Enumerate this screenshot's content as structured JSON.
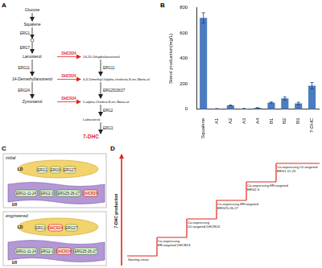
{
  "panel_labels": [
    "A",
    "B",
    "C",
    "D"
  ],
  "pathway": {
    "metabolites": [
      {
        "label": "Glucose"
      },
      {
        "label": "Squalene"
      },
      {
        "label": "Lanosterol"
      },
      {
        "label": "24,25-Dihydrolanosterol"
      },
      {
        "label": "14-Demethyllanosterol"
      },
      {
        "label": "4,4-Dimethyl-5alpha-cholesta-8-en-3beta-ol"
      },
      {
        "label": "Zymosterol"
      },
      {
        "label": "5-alpha-Cholest-8-en-3beta-ol"
      },
      {
        "label": "Lathosterol"
      },
      {
        "label": "7-DHC",
        "color": "#e0261d"
      }
    ],
    "steps": [
      {
        "from": 0,
        "to": 1,
        "enzymes": []
      },
      {
        "from": 1,
        "to": 2,
        "enzymes": [
          "ERG1",
          "ERG7"
        ]
      },
      {
        "from": 2,
        "to": 3,
        "enzymes": [
          "DHCR24"
        ],
        "color": "#e0261d"
      },
      {
        "from": 2,
        "to": 4,
        "enzymes": [
          "ERG11"
        ]
      },
      {
        "from": 3,
        "to": 5,
        "enzymes": [
          "ERG11"
        ]
      },
      {
        "from": 4,
        "to": 5,
        "enzymes": [
          "DHCR24"
        ],
        "color": "#e0261d"
      },
      {
        "from": 4,
        "to": 6,
        "enzymes": [
          "ERG24"
        ]
      },
      {
        "from": 5,
        "to": 7,
        "enzymes": [
          "ERG25/26/27"
        ]
      },
      {
        "from": 6,
        "to": 7,
        "enzymes": [
          "DHCR24"
        ],
        "color": "#e0261d"
      },
      {
        "from": 7,
        "to": 8,
        "enzymes": [
          "ERG2"
        ]
      },
      {
        "from": 8,
        "to": 9,
        "enzymes": [
          "ERG3"
        ]
      }
    ]
  },
  "chart_data": {
    "type": "bar",
    "categories": [
      "Squalene",
      "A1",
      "A2",
      "A3",
      "A4",
      "B1",
      "B2",
      "B3",
      "7-DHC"
    ],
    "values": [
      720,
      3,
      30,
      4,
      10,
      52,
      85,
      45,
      185
    ],
    "errors": [
      40,
      1,
      3,
      1,
      1,
      5,
      12,
      10,
      25
    ],
    "color": "#4a7cc0",
    "ylabel": "Sterol production(mg/L)",
    "ylim": [
      0,
      800
    ],
    "yticks": [
      0,
      200,
      400,
      600,
      800
    ],
    "grid": false
  },
  "compartments": {
    "highlight": {
      "label": "DHCR24",
      "color": "#e0261d"
    },
    "states": [
      {
        "title": "initial",
        "LD": [
          "ERG1",
          "ERG6",
          "ERG27"
        ],
        "ER": [
          "ERG1-11-24",
          "ERG2-3",
          "ERG25-26-27",
          "DHCR24"
        ]
      },
      {
        "title": "engineered",
        "LD": [
          "ERG1",
          "DHCR24",
          "ERG27"
        ],
        "ER": [
          "ERG1-11-24",
          "ERG2-3",
          "DHCR24",
          "ERG25-26-27"
        ]
      }
    ],
    "LD_label": "LD",
    "ER_label": "ER"
  },
  "strategy": {
    "axis_label": "7-DHC production",
    "color": "#e0261d",
    "steps": [
      [
        "Starting strain"
      ],
      [
        "Co-expressing",
        "ER-targeted DHCR24"
      ],
      [
        "Co-expressing",
        "LD-targeted DHCR24"
      ],
      [
        "Co-expressing ER-targeted",
        "ERG25-26-27"
      ],
      [
        "Co-expressing ER-targeted",
        "ERG2-3"
      ],
      [
        "Co-expressing LD-targeted",
        "ERG1-11-24"
      ]
    ]
  }
}
